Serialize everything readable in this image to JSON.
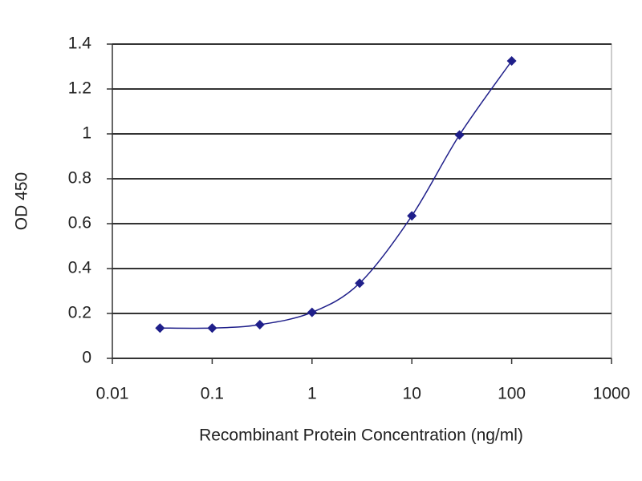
{
  "chart_data": {
    "type": "line",
    "x_label": "Recombinant Protein Concentration (ng/ml)",
    "y_label": "OD 450",
    "x": [
      0.03,
      0.1,
      0.3,
      1,
      3,
      10,
      30,
      100
    ],
    "values": [
      0.135,
      0.135,
      0.15,
      0.205,
      0.335,
      0.635,
      0.995,
      1.325
    ],
    "color": "#1f1f8a",
    "marker": "diamond",
    "xscale": "log",
    "xlim": [
      0.01,
      1000
    ],
    "xticks": [
      0.01,
      0.1,
      1,
      10,
      100,
      1000
    ],
    "ylim": [
      0,
      1.4
    ],
    "yticks": [
      0,
      0.2,
      0.4,
      0.6,
      0.8,
      1,
      1.2,
      1.4
    ],
    "grid": true
  }
}
